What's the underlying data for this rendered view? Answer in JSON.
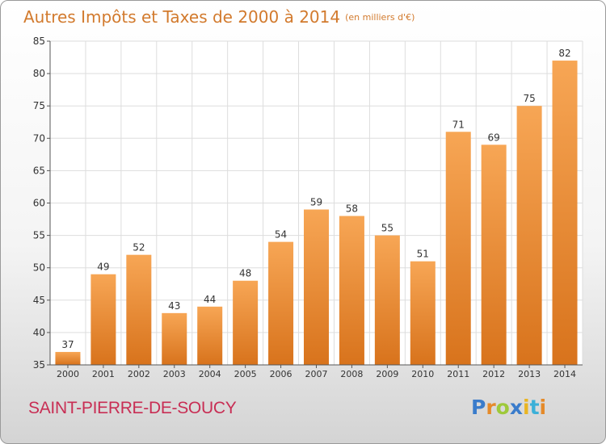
{
  "header": {
    "title": "Autres Impôts et Taxes de 2000 à 2014",
    "unit": "(en milliers d'€)"
  },
  "footer": {
    "commune": "SAINT-PIERRE-DE-SOUCY",
    "logo_letters": [
      "P",
      "r",
      "o",
      "x",
      "i",
      "t",
      "i"
    ]
  },
  "colors": {
    "bar_light": "#f7a655",
    "bar_dark": "#d8731c",
    "title": "#d27a2d",
    "commune": "#c82e54",
    "grid": "#dddddd",
    "axis": "#555555"
  },
  "chart_data": {
    "type": "bar",
    "categories": [
      "2000",
      "2001",
      "2002",
      "2003",
      "2004",
      "2005",
      "2006",
      "2007",
      "2008",
      "2009",
      "2010",
      "2011",
      "2012",
      "2013",
      "2014"
    ],
    "values": [
      37,
      49,
      52,
      43,
      44,
      48,
      54,
      59,
      58,
      55,
      51,
      71,
      69,
      75,
      82
    ],
    "ylim": [
      35,
      85
    ],
    "yticks": [
      35,
      40,
      45,
      50,
      55,
      60,
      65,
      70,
      75,
      80,
      85
    ],
    "grid": true,
    "legend": "none"
  }
}
